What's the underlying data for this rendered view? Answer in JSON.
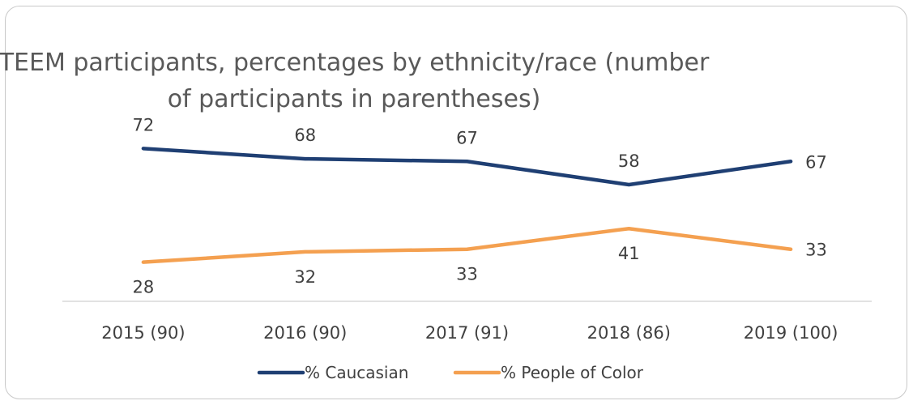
{
  "chart_data": {
    "type": "line",
    "title_lines": [
      "TEEM participants, percentages by ethnicity/race (number",
      "of participants in parentheses)"
    ],
    "categories": [
      "2015 (90)",
      "2016 (90)",
      "2017 (91)",
      "2018 (86)",
      "2019 (100)"
    ],
    "series": [
      {
        "name": "% Caucasian",
        "values": [
          72,
          68,
          67,
          58,
          67
        ],
        "color": "#1f3f73",
        "label_position": "above"
      },
      {
        "name": "% People of Color",
        "values": [
          28,
          32,
          33,
          41,
          33
        ],
        "color": "#f4a050",
        "label_position": "below"
      }
    ],
    "ylim": [
      0,
      100
    ],
    "grid": false,
    "legend_position": "bottom"
  }
}
